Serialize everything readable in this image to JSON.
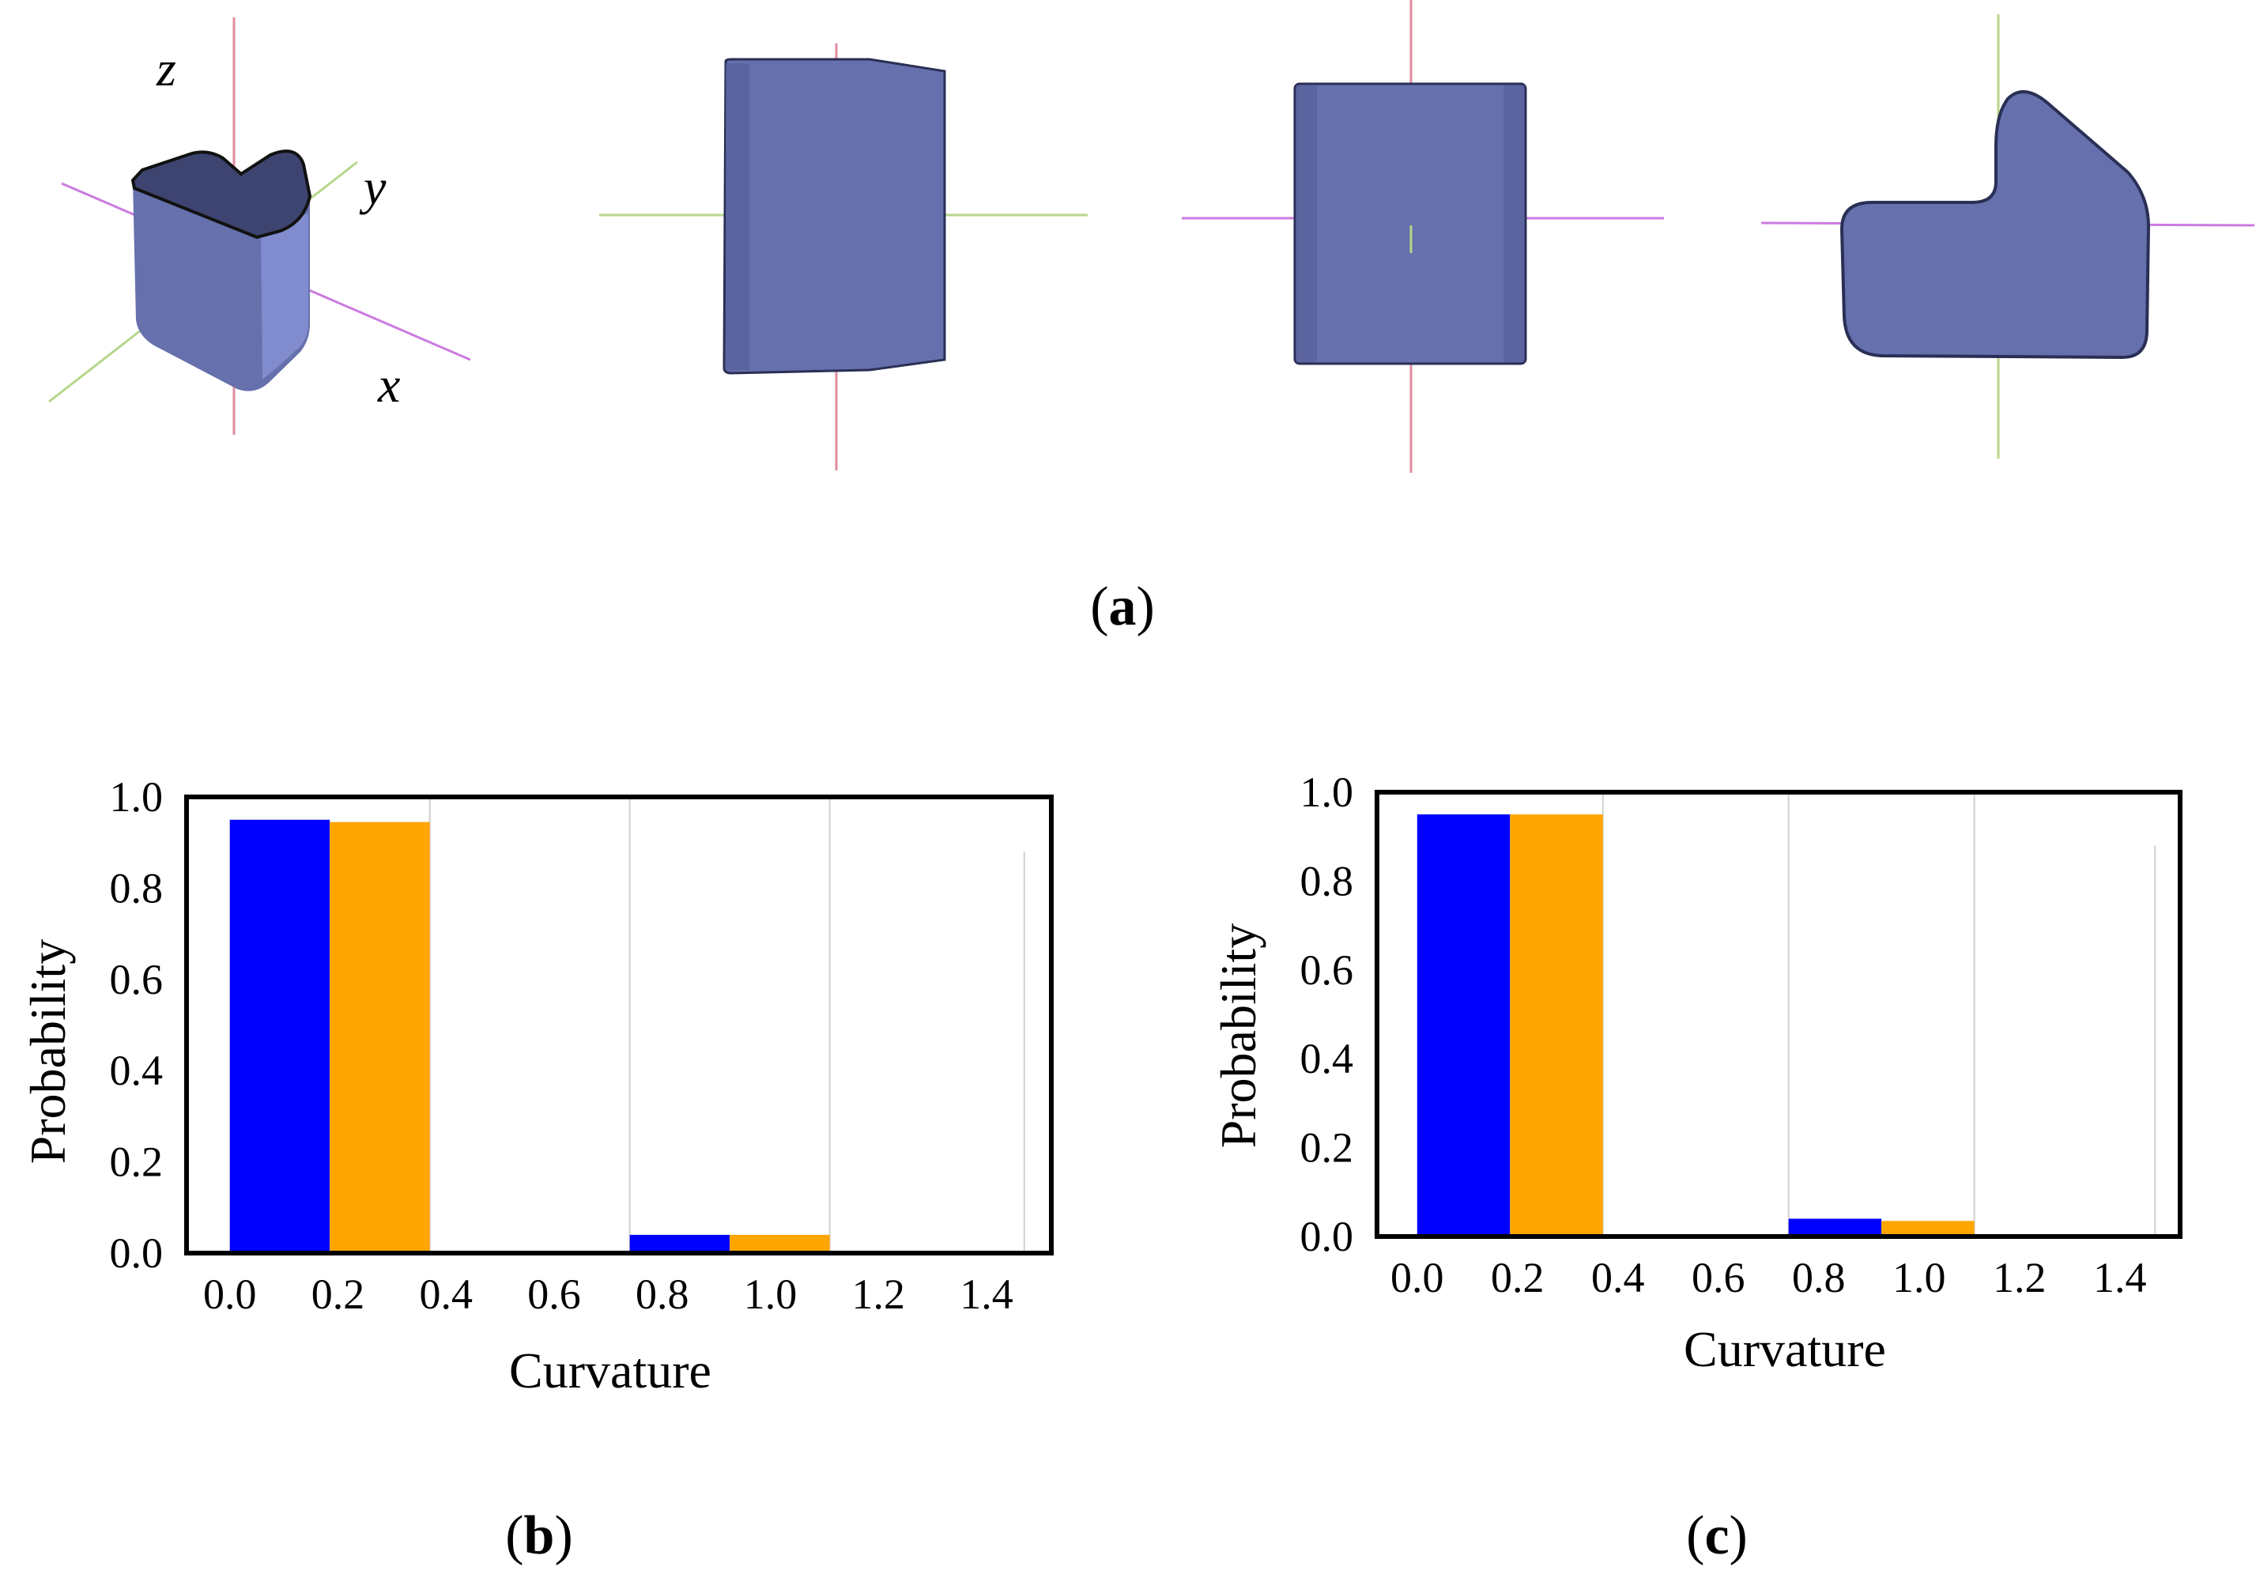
{
  "panel_a": {
    "axis_letters": {
      "z": "z",
      "y": "y",
      "x": "x"
    },
    "colors": {
      "body": "#6670ad",
      "body_dark": "#3d4470",
      "body_light": "#8690d4",
      "axis_red": "#e18a9e",
      "axis_green": "#b6d68a",
      "axis_purple": "#cc7be0"
    }
  },
  "captions": {
    "a": {
      "open": "(",
      "letter": "a",
      "close": ")"
    },
    "b": {
      "open": "(",
      "letter": "b",
      "close": ")"
    },
    "c": {
      "open": "(",
      "letter": "c",
      "close": ")"
    }
  },
  "chart_data": [
    {
      "id": "b",
      "type": "bar",
      "xlabel": "Curvature",
      "ylabel": "Probability",
      "xlim": [
        -0.08,
        1.52
      ],
      "ylim": [
        0,
        1.0
      ],
      "xticks": [
        0.0,
        0.2,
        0.4,
        0.6,
        0.8,
        1.0,
        1.2,
        1.4
      ],
      "xtick_labels": [
        "0.0",
        "0.2",
        "0.4",
        "0.6",
        "0.8",
        "1.0",
        "1.2",
        "1.4"
      ],
      "yticks": [
        0.0,
        0.2,
        0.4,
        0.6,
        0.8,
        1.0
      ],
      "ytick_labels": [
        "0.0",
        "0.2",
        "0.4",
        "0.6",
        "0.8",
        "1.0"
      ],
      "grid_x": [
        0.37,
        0.74,
        1.11
      ],
      "series": [
        {
          "name": "series-blue",
          "color": "#0000ff",
          "bars": [
            {
              "x0": 0.0,
              "x1": 0.185,
              "value": 0.95
            },
            {
              "x0": 0.74,
              "x1": 0.925,
              "value": 0.04
            }
          ]
        },
        {
          "name": "series-orange",
          "color": "#ffa500",
          "bars": [
            {
              "x0": 0.185,
              "x1": 0.37,
              "value": 0.945
            },
            {
              "x0": 0.925,
              "x1": 1.11,
              "value": 0.04
            }
          ]
        }
      ]
    },
    {
      "id": "c",
      "type": "bar",
      "xlabel": "Curvature",
      "ylabel": "Probability",
      "xlim": [
        -0.08,
        1.52
      ],
      "ylim": [
        0,
        1.0
      ],
      "xticks": [
        0.0,
        0.2,
        0.4,
        0.6,
        0.8,
        1.0,
        1.2,
        1.4
      ],
      "xtick_labels": [
        "0.0",
        "0.2",
        "0.4",
        "0.6",
        "0.8",
        "1.0",
        "1.2",
        "1.4"
      ],
      "yticks": [
        0.0,
        0.2,
        0.4,
        0.6,
        0.8,
        1.0
      ],
      "ytick_labels": [
        "0.0",
        "0.2",
        "0.4",
        "0.6",
        "0.8",
        "1.0"
      ],
      "grid_x": [
        0.37,
        0.74,
        1.11
      ],
      "series": [
        {
          "name": "series-blue",
          "color": "#0000ff",
          "bars": [
            {
              "x0": 0.0,
              "x1": 0.185,
              "value": 0.95
            },
            {
              "x0": 0.74,
              "x1": 0.925,
              "value": 0.04
            }
          ]
        },
        {
          "name": "series-orange",
          "color": "#ffa500",
          "bars": [
            {
              "x0": 0.185,
              "x1": 0.37,
              "value": 0.95
            },
            {
              "x0": 0.925,
              "x1": 1.11,
              "value": 0.035
            }
          ]
        }
      ]
    }
  ]
}
